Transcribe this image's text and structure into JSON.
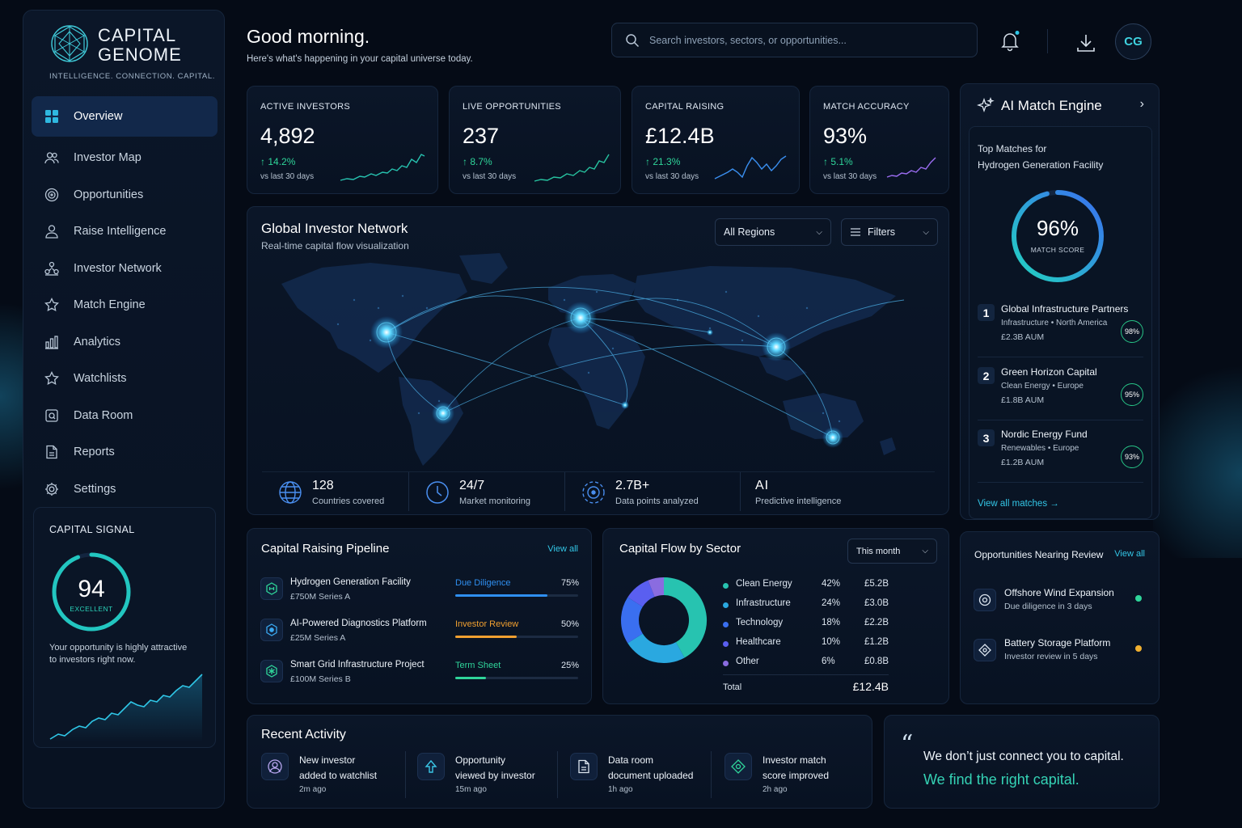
{
  "brand": {
    "line1": "CAPITAL",
    "line2": "GENOME",
    "tagline": "INTELLIGENCE. CONNECTION. CAPITAL."
  },
  "nav": [
    {
      "label": "Overview",
      "icon": "grid-icon"
    },
    {
      "label": "Investor Map",
      "icon": "users-icon"
    },
    {
      "label": "Opportunities",
      "icon": "target-icon"
    },
    {
      "label": "Raise Intelligence",
      "icon": "person-icon"
    },
    {
      "label": "Investor Network",
      "icon": "network-icon"
    },
    {
      "label": "Match Engine",
      "icon": "star-icon"
    },
    {
      "label": "Analytics",
      "icon": "bar-chart-icon"
    },
    {
      "label": "Watchlists",
      "icon": "star-outline-icon"
    },
    {
      "label": "Data Room",
      "icon": "folder-icon"
    },
    {
      "label": "Reports",
      "icon": "document-icon"
    },
    {
      "label": "Settings",
      "icon": "gear-icon"
    }
  ],
  "signal": {
    "title": "CAPITAL SIGNAL",
    "score": "94",
    "score_value": 94,
    "label": "EXCELLENT",
    "text": "Your opportunity is highly attractive to investors right now."
  },
  "header": {
    "greeting": "Good morning.",
    "subtitle": "Here's what's happening in your capital universe today.",
    "search_placeholder": "Search investors, sectors, or opportunities...",
    "avatar": "CG"
  },
  "kpis": [
    {
      "label": "ACTIVE INVESTORS",
      "value": "4,892",
      "delta": "14.2%",
      "sub": "vs last 30 days",
      "color": "#27c3b0"
    },
    {
      "label": "LIVE OPPORTUNITIES",
      "value": "237",
      "delta": "8.7%",
      "sub": "vs last 30 days",
      "color": "#27c3a0"
    },
    {
      "label": "CAPITAL RAISING",
      "value": "£12.4B",
      "delta": "21.3%",
      "sub": "vs last 30 days",
      "color": "#3a8ff0"
    },
    {
      "label": "MATCH ACCURACY",
      "value": "93%",
      "delta": "5.1%",
      "sub": "vs last 30 days",
      "color": "#9a6cf0"
    }
  ],
  "map": {
    "title": "Global Investor Network",
    "subtitle": "Real-time capital flow visualization",
    "region_select": "All Regions",
    "filters_label": "Filters",
    "stats": [
      {
        "value": "128",
        "label": "Countries covered",
        "icon": "globe-icon"
      },
      {
        "value": "24/7",
        "label": "Market monitoring",
        "icon": "clock-icon"
      },
      {
        "value": "2.7B+",
        "label": "Data points analyzed",
        "icon": "radar-icon"
      },
      {
        "value": "AI",
        "label": "Predictive intelligence",
        "icon": ""
      }
    ]
  },
  "ai": {
    "title": "AI Match Engine",
    "top_line1": "Top Matches for",
    "top_line2": "Hydrogen Generation Facility",
    "match_pct": "96%",
    "match_value": 96,
    "match_label": "MATCH SCORE",
    "matches": [
      {
        "rank": "1",
        "name": "Global Infrastructure Partners",
        "sector": "Infrastructure",
        "region": "North America",
        "aum": "£2.3B AUM",
        "score": "98%"
      },
      {
        "rank": "2",
        "name": "Green Horizon Capital",
        "sector": "Clean Energy",
        "region": "Europe",
        "aum": "£1.8B AUM",
        "score": "95%"
      },
      {
        "rank": "3",
        "name": "Nordic Energy Fund",
        "sector": "Renewables",
        "region": "Europe",
        "aum": "£1.2B AUM",
        "score": "93%"
      }
    ],
    "view_all": "View all matches"
  },
  "pipeline": {
    "title": "Capital Raising Pipeline",
    "view_all": "View all",
    "items": [
      {
        "name": "Hydrogen Generation Facility",
        "sub": "£750M Series A",
        "stage": "Due Diligence",
        "pct": "75%",
        "progress": 0.75,
        "color": "#2f8ff0"
      },
      {
        "name": "AI-Powered Diagnostics Platform",
        "sub": "£25M Series A",
        "stage": "Investor Review",
        "pct": "50%",
        "progress": 0.5,
        "color": "#f0a030"
      },
      {
        "name": "Smart Grid Infrastructure Project",
        "sub": "£100M Series B",
        "stage": "Term Sheet",
        "pct": "25%",
        "progress": 0.25,
        "color": "#2fd59a"
      }
    ]
  },
  "sector": {
    "title": "Capital Flow by Sector",
    "period": "This month",
    "rows": [
      {
        "name": "Clean Energy",
        "pct": "42%",
        "share": 42,
        "value": "£5.2B",
        "color": "#27c3b0"
      },
      {
        "name": "Infrastructure",
        "pct": "24%",
        "share": 24,
        "value": "£3.0B",
        "color": "#2aa8e0"
      },
      {
        "name": "Technology",
        "pct": "18%",
        "share": 18,
        "value": "£2.2B",
        "color": "#3a6ff0"
      },
      {
        "name": "Healthcare",
        "pct": "10%",
        "share": 10,
        "value": "£1.2B",
        "color": "#5a5ff0"
      },
      {
        "name": "Other",
        "pct": "6%",
        "share": 6,
        "value": "£0.8B",
        "color": "#8a6ce0"
      }
    ],
    "total_label": "Total",
    "total_value": "£12.4B"
  },
  "review": {
    "title": "Opportunities Nearing Review",
    "view_all": "View all",
    "items": [
      {
        "name": "Offshore Wind Expansion",
        "sub": "Due diligence in 3 days",
        "color": "#2fd59a"
      },
      {
        "name": "Battery Storage Platform",
        "sub": "Investor review in 5 days",
        "color": "#f0b030"
      }
    ]
  },
  "recent": {
    "title": "Recent Activity",
    "items": [
      {
        "line1": "New investor",
        "line2": "added to watchlist",
        "time": "2m ago"
      },
      {
        "line1": "Opportunity",
        "line2": "viewed by investor",
        "time": "15m ago"
      },
      {
        "line1": "Data room",
        "line2": "document uploaded",
        "time": "1h ago"
      },
      {
        "line1": "Investor match",
        "line2": "score improved",
        "time": "2h ago"
      }
    ]
  },
  "quote": {
    "mark": "“",
    "line1": "We don’t just connect you to capital.",
    "line2": "We find the right capital."
  }
}
